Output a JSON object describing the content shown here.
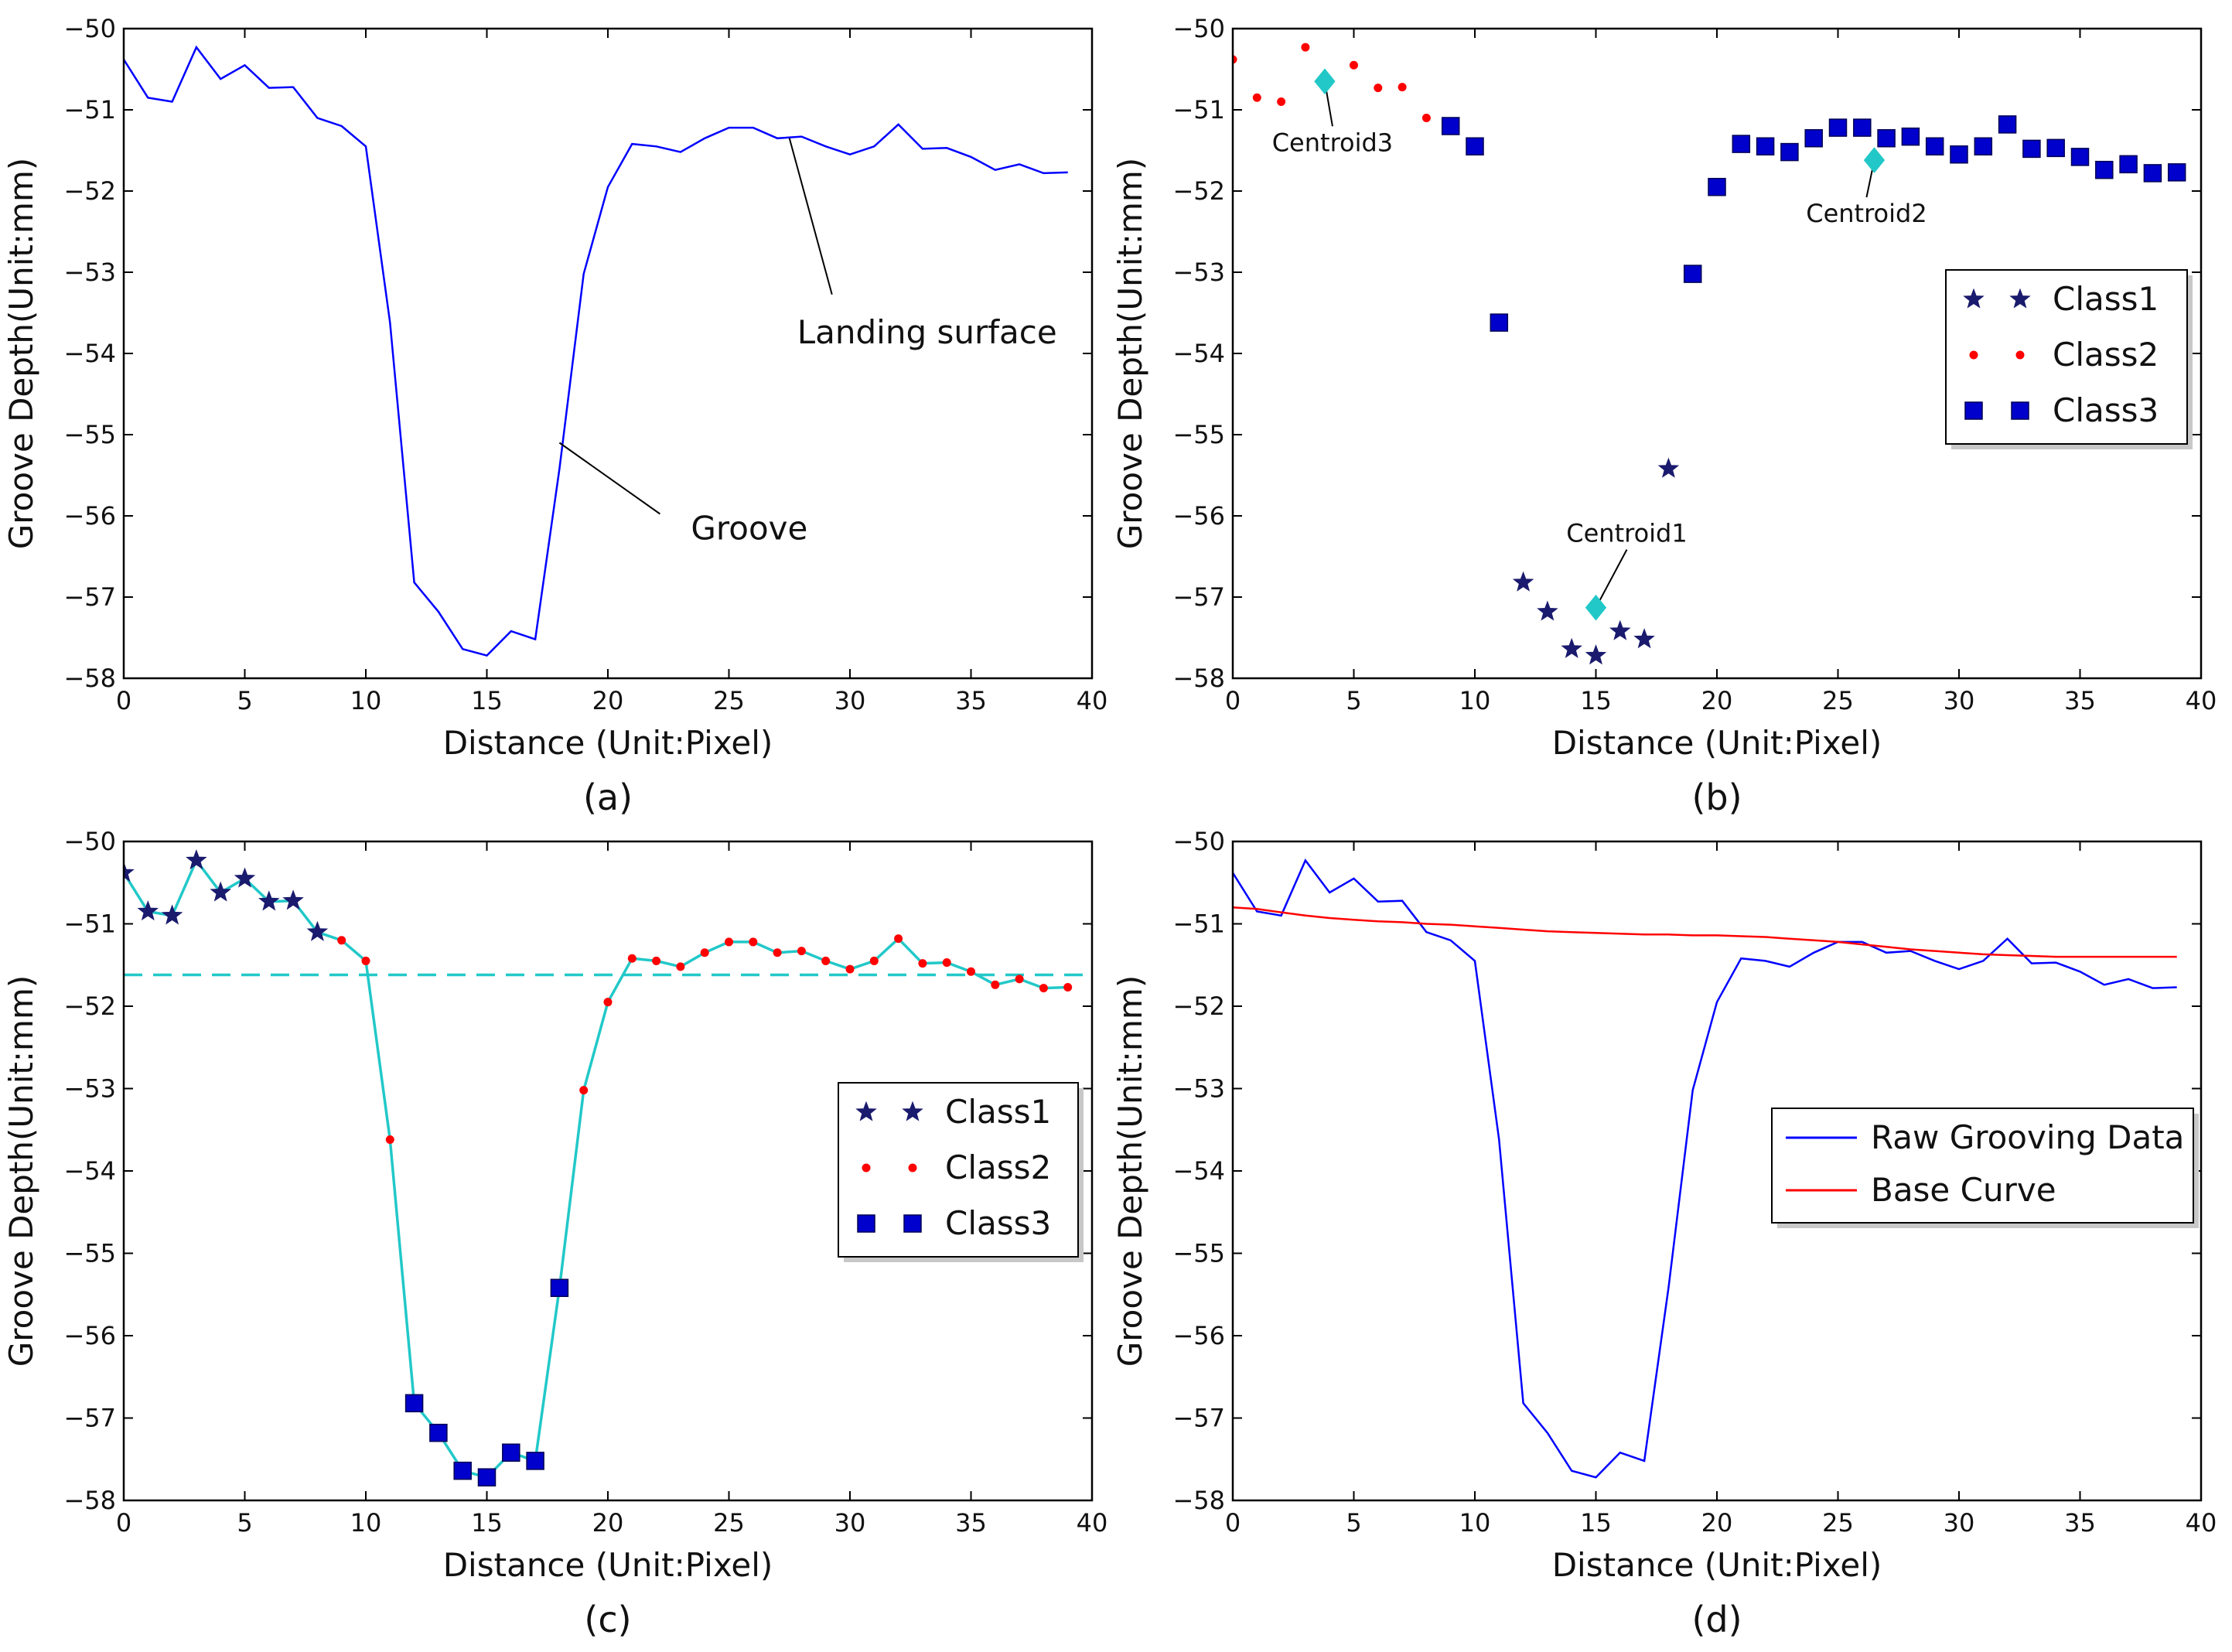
{
  "chart_data": [
    {
      "panel_label": "(a)",
      "type": "line",
      "xlabel": "Distance (Unit:Pixel)",
      "ylabel": "Groove Depth(Unit:mm)",
      "xlim": [
        0,
        40
      ],
      "ylim": [
        -58,
        -50
      ],
      "xticks": [
        "0",
        "5",
        "10",
        "15",
        "20",
        "25",
        "30",
        "35",
        "40"
      ],
      "yticks": [
        "−50",
        "−51",
        "−52",
        "−53",
        "−54",
        "−55",
        "−56",
        "−57",
        "−58"
      ],
      "grid": false,
      "x": [
        0,
        1,
        2,
        3,
        4,
        5,
        6,
        7,
        8,
        9,
        10,
        11,
        12,
        13,
        14,
        15,
        16,
        17,
        18,
        19,
        20,
        21,
        22,
        23,
        24,
        25,
        26,
        27,
        28,
        29,
        30,
        31,
        32,
        33,
        34,
        35,
        36,
        37,
        38,
        39
      ],
      "series": [
        {
          "color": "#0000ff",
          "values": [
            -50.38,
            -50.85,
            -50.9,
            -50.23,
            -50.62,
            -50.45,
            -50.73,
            -50.72,
            -51.1,
            -51.2,
            -51.45,
            -53.62,
            -56.82,
            -57.18,
            -57.64,
            -57.72,
            -57.42,
            -57.52,
            -55.42,
            -53.02,
            -51.95,
            -51.42,
            -51.45,
            -51.52,
            -51.35,
            -51.22,
            -51.22,
            -51.35,
            -51.33,
            -51.45,
            -51.55,
            -51.45,
            -51.18,
            -51.48,
            -51.47,
            -51.58,
            -51.74,
            -51.67,
            -51.78,
            -51.77
          ]
        }
      ],
      "annotations": [
        {
          "text": "Landing surface",
          "x": 27.5,
          "y": -51.35
        },
        {
          "text": "Groove",
          "x": 18,
          "y": -55.1
        }
      ]
    },
    {
      "panel_label": "(b)",
      "type": "scatter",
      "xlabel": "Distance (Unit:Pixel)",
      "ylabel": "Groove Depth(Unit:mm)",
      "xlim": [
        0,
        40
      ],
      "ylim": [
        -58,
        -50
      ],
      "xticks": [
        "0",
        "5",
        "10",
        "15",
        "20",
        "25",
        "30",
        "35",
        "40"
      ],
      "yticks": [
        "−50",
        "−51",
        "−52",
        "−53",
        "−54",
        "−55",
        "−56",
        "−57",
        "−58"
      ],
      "grid": false,
      "legend": {
        "placement": "right",
        "entries": [
          "Class1",
          "Class2",
          "Class3"
        ]
      },
      "series": [
        {
          "name": "Class1",
          "marker": "star",
          "color": "#1a1a6e",
          "points": [
            [
              12,
              -56.82
            ],
            [
              13,
              -57.18
            ],
            [
              14,
              -57.64
            ],
            [
              15,
              -57.72
            ],
            [
              16,
              -57.42
            ],
            [
              17,
              -57.52
            ],
            [
              18,
              -55.42
            ]
          ]
        },
        {
          "name": "Class2",
          "marker": "dot",
          "color": "#ff0000",
          "points": [
            [
              0,
              -50.38
            ],
            [
              1,
              -50.85
            ],
            [
              2,
              -50.9
            ],
            [
              3,
              -50.23
            ],
            [
              5,
              -50.45
            ],
            [
              6,
              -50.73
            ],
            [
              7,
              -50.72
            ],
            [
              8,
              -51.1
            ]
          ]
        },
        {
          "name": "Class3",
          "marker": "square",
          "color": "#0000cc",
          "points": [
            [
              9,
              -51.2
            ],
            [
              10,
              -51.45
            ],
            [
              11,
              -53.62
            ],
            [
              19,
              -53.02
            ],
            [
              20,
              -51.95
            ],
            [
              21,
              -51.42
            ],
            [
              22,
              -51.45
            ],
            [
              23,
              -51.52
            ],
            [
              24,
              -51.35
            ],
            [
              25,
              -51.22
            ],
            [
              26,
              -51.22
            ],
            [
              27,
              -51.35
            ],
            [
              28,
              -51.33
            ],
            [
              29,
              -51.45
            ],
            [
              30,
              -51.55
            ],
            [
              31,
              -51.45
            ],
            [
              32,
              -51.18
            ],
            [
              33,
              -51.48
            ],
            [
              34,
              -51.47
            ],
            [
              35,
              -51.58
            ],
            [
              36,
              -51.74
            ],
            [
              37,
              -51.67
            ],
            [
              38,
              -51.78
            ],
            [
              39,
              -51.77
            ]
          ]
        }
      ],
      "centroids": [
        {
          "label": "Centroid1",
          "x": 15.0,
          "y": -57.13,
          "color": "#22c8c8"
        },
        {
          "label": "Centroid2",
          "x": 26.5,
          "y": -51.62,
          "color": "#22c8c8"
        },
        {
          "label": "Centroid3",
          "x": 3.8,
          "y": -50.65,
          "color": "#22c8c8"
        }
      ]
    },
    {
      "panel_label": "(c)",
      "type": "line",
      "xlabel": "Distance (Unit:Pixel)",
      "ylabel": "Groove Depth(Unit:mm)",
      "xlim": [
        0,
        40
      ],
      "ylim": [
        -58,
        -50
      ],
      "xticks": [
        "0",
        "5",
        "10",
        "15",
        "20",
        "25",
        "30",
        "35",
        "40"
      ],
      "yticks": [
        "−50",
        "−51",
        "−52",
        "−53",
        "−54",
        "−55",
        "−56",
        "−57",
        "−58"
      ],
      "grid": false,
      "legend": {
        "placement": "right",
        "entries": [
          "Class1",
          "Class2",
          "Class3"
        ]
      },
      "x": [
        0,
        1,
        2,
        3,
        4,
        5,
        6,
        7,
        8,
        9,
        10,
        11,
        12,
        13,
        14,
        15,
        16,
        17,
        18,
        19,
        20,
        21,
        22,
        23,
        24,
        25,
        26,
        27,
        28,
        29,
        30,
        31,
        32,
        33,
        34,
        35,
        36,
        37,
        38,
        39
      ],
      "line": {
        "color": "#22c8c8",
        "values": [
          -50.38,
          -50.85,
          -50.9,
          -50.23,
          -50.62,
          -50.45,
          -50.73,
          -50.72,
          -51.1,
          -51.2,
          -51.45,
          -53.62,
          -56.82,
          -57.18,
          -57.64,
          -57.72,
          -57.42,
          -57.52,
          -55.42,
          -53.02,
          -51.95,
          -51.42,
          -51.45,
          -51.52,
          -51.35,
          -51.22,
          -51.22,
          -51.35,
          -51.33,
          -51.45,
          -51.55,
          -51.45,
          -51.18,
          -51.48,
          -51.47,
          -51.58,
          -51.74,
          -51.67,
          -51.78,
          -51.77
        ]
      },
      "threshold": {
        "y": -51.62,
        "color": "#22c8c8",
        "style": "dashed"
      },
      "series": [
        {
          "name": "Class1",
          "marker": "star",
          "color": "#1a1a6e",
          "points": [
            [
              0,
              -50.38
            ],
            [
              1,
              -50.85
            ],
            [
              2,
              -50.9
            ],
            [
              3,
              -50.23
            ],
            [
              4,
              -50.62
            ],
            [
              5,
              -50.45
            ],
            [
              6,
              -50.73
            ],
            [
              7,
              -50.72
            ],
            [
              8,
              -51.1
            ]
          ]
        },
        {
          "name": "Class2",
          "marker": "dot",
          "color": "#ff0000",
          "points": [
            [
              9,
              -51.2
            ],
            [
              10,
              -51.45
            ],
            [
              11,
              -53.62
            ],
            [
              19,
              -53.02
            ],
            [
              20,
              -51.95
            ],
            [
              21,
              -51.42
            ],
            [
              22,
              -51.45
            ],
            [
              23,
              -51.52
            ],
            [
              24,
              -51.35
            ],
            [
              25,
              -51.22
            ],
            [
              26,
              -51.22
            ],
            [
              27,
              -51.35
            ],
            [
              28,
              -51.33
            ],
            [
              29,
              -51.45
            ],
            [
              30,
              -51.55
            ],
            [
              31,
              -51.45
            ],
            [
              32,
              -51.18
            ],
            [
              33,
              -51.48
            ],
            [
              34,
              -51.47
            ],
            [
              35,
              -51.58
            ],
            [
              36,
              -51.74
            ],
            [
              37,
              -51.67
            ],
            [
              38,
              -51.78
            ],
            [
              39,
              -51.77
            ]
          ]
        },
        {
          "name": "Class3",
          "marker": "square",
          "color": "#0000cc",
          "points": [
            [
              12,
              -56.82
            ],
            [
              13,
              -57.18
            ],
            [
              14,
              -57.64
            ],
            [
              15,
              -57.72
            ],
            [
              16,
              -57.42
            ],
            [
              17,
              -57.52
            ],
            [
              18,
              -55.42
            ]
          ]
        }
      ]
    },
    {
      "panel_label": "(d)",
      "type": "line",
      "xlabel": "Distance (Unit:Pixel)",
      "ylabel": "Groove Depth(Unit:mm)",
      "xlim": [
        0,
        40
      ],
      "ylim": [
        -58,
        -50
      ],
      "xticks": [
        "0",
        "5",
        "10",
        "15",
        "20",
        "25",
        "30",
        "35",
        "40"
      ],
      "yticks": [
        "−50",
        "−51",
        "−52",
        "−53",
        "−54",
        "−55",
        "−56",
        "−57",
        "−58"
      ],
      "grid": false,
      "legend": {
        "placement": "right",
        "entries": [
          "Raw Grooving Data",
          "Base Curve"
        ]
      },
      "x": [
        0,
        1,
        2,
        3,
        4,
        5,
        6,
        7,
        8,
        9,
        10,
        11,
        12,
        13,
        14,
        15,
        16,
        17,
        18,
        19,
        20,
        21,
        22,
        23,
        24,
        25,
        26,
        27,
        28,
        29,
        30,
        31,
        32,
        33,
        34,
        35,
        36,
        37,
        38,
        39
      ],
      "series": [
        {
          "name": "Raw Grooving Data",
          "color": "#0000ff",
          "values": [
            -50.38,
            -50.85,
            -50.9,
            -50.23,
            -50.62,
            -50.45,
            -50.73,
            -50.72,
            -51.1,
            -51.2,
            -51.45,
            -53.62,
            -56.82,
            -57.18,
            -57.64,
            -57.72,
            -57.42,
            -57.52,
            -55.42,
            -53.02,
            -51.95,
            -51.42,
            -51.45,
            -51.52,
            -51.35,
            -51.22,
            -51.22,
            -51.35,
            -51.33,
            -51.45,
            -51.55,
            -51.45,
            -51.18,
            -51.48,
            -51.47,
            -51.58,
            -51.74,
            -51.67,
            -51.78,
            -51.77
          ]
        },
        {
          "name": "Base Curve",
          "color": "#ff0000",
          "values": [
            -50.8,
            -50.82,
            -50.86,
            -50.9,
            -50.93,
            -50.95,
            -50.97,
            -50.98,
            -51.0,
            -51.01,
            -51.03,
            -51.05,
            -51.07,
            -51.09,
            -51.1,
            -51.11,
            -51.12,
            -51.13,
            -51.13,
            -51.14,
            -51.14,
            -51.15,
            -51.16,
            -51.18,
            -51.2,
            -51.22,
            -51.25,
            -51.28,
            -51.31,
            -51.33,
            -51.35,
            -51.37,
            -51.38,
            -51.39,
            -51.4,
            -51.4,
            -51.4,
            -51.4,
            -51.4,
            -51.4
          ]
        }
      ]
    }
  ]
}
